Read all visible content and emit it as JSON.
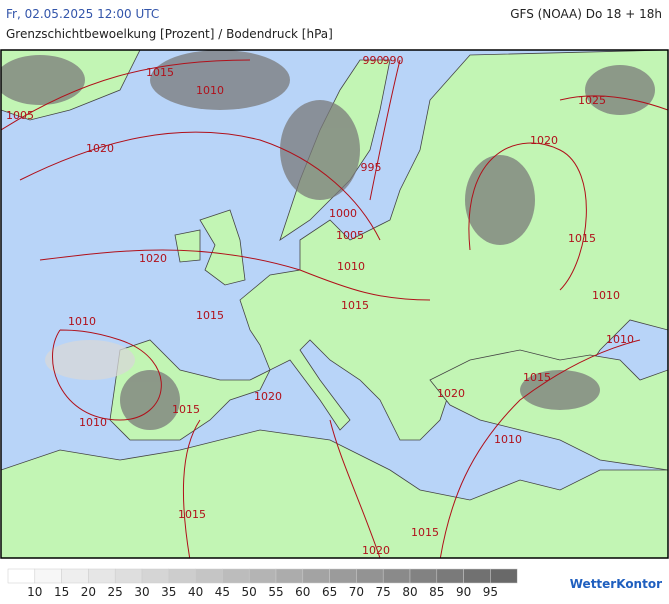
{
  "header": {
    "datetime": "Fr, 02.05.2025 12:00 UTC",
    "model": "GFS (NOAA) Do 18 + 18h",
    "title": "Grenzschichtbewoelkung [Prozent] / Bodendruck [hPa]"
  },
  "isobar_labels": [
    1015,
    1010,
    1005,
    1020,
    990,
    990,
    995,
    1000,
    1005,
    1010,
    1020,
    1015,
    1010,
    1015,
    1010,
    1015,
    1020,
    1020,
    1015,
    1010,
    1010,
    1010,
    1015,
    1020,
    1025,
    1015,
    1020,
    1015
  ],
  "legend": {
    "labels": [
      10,
      15,
      20,
      25,
      30,
      35,
      40,
      45,
      50,
      55,
      60,
      65,
      70,
      75,
      80,
      85,
      90,
      95
    ]
  },
  "logo": "WetterKontor"
}
